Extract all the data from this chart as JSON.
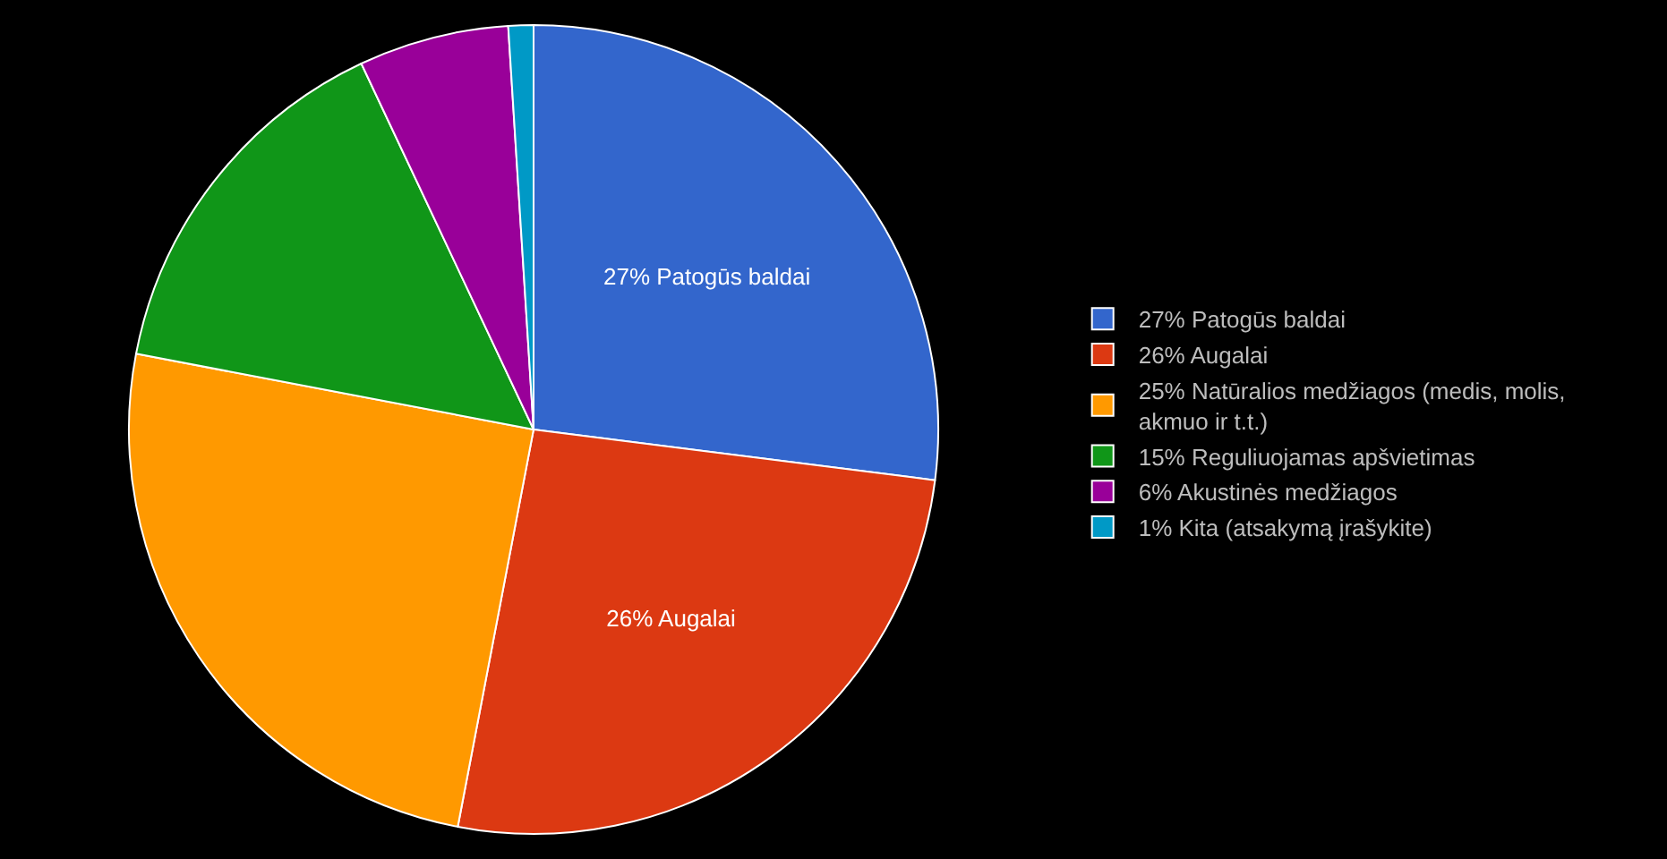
{
  "chart_data": {
    "type": "pie",
    "categories": [
      "27% Patogūs baldai",
      "26% Augalai",
      "25% Natūralios medžiagos (medis, molis, akmuo ir t.t.)",
      "15% Reguliuojamas apšvietimas",
      "6% Akustinės medžiagos",
      "1% Kita (atsakymą įrašykite)"
    ],
    "values": [
      27,
      26,
      25,
      15,
      6,
      1
    ],
    "colors": [
      "#3366cc",
      "#dc3912",
      "#ff9900",
      "#109618",
      "#990099",
      "#0099c6"
    ],
    "value_labels": [
      "27% Patogūs baldai",
      "26% Augalai",
      null,
      null,
      null,
      null
    ],
    "legend": "right"
  }
}
